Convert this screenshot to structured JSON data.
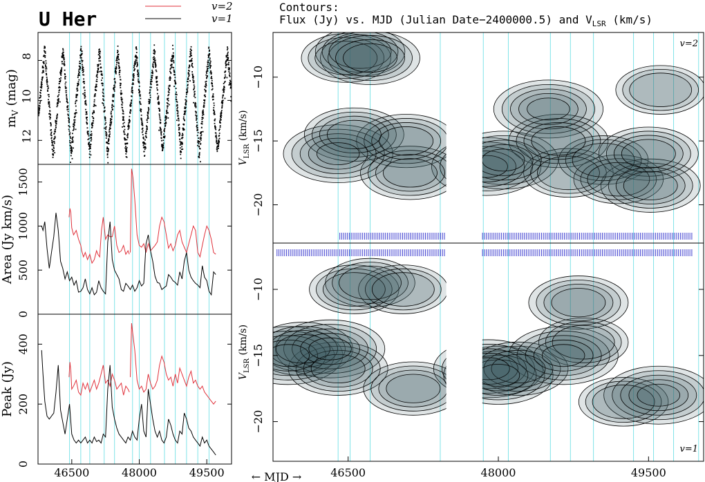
{
  "title": "U Her",
  "legend": {
    "v2": "v=2",
    "v1": "v=1",
    "colors": {
      "v2": "#e0303a",
      "v1": "#000000"
    }
  },
  "colors": {
    "grid": "#7fe3e8",
    "contour_fill": "#3f5f67",
    "obs_tick": "#4040d0"
  },
  "contours_title": {
    "line1": "Contours:",
    "line2_prefix": "Flux (Jy) vs. MJD (Julian  Date−2400000.5) and V",
    "line2_sub": "LSR",
    "line2_suffix": " (km/s)"
  },
  "xaxis_label": "← MJD →",
  "chart_data": [
    {
      "type": "scatter",
      "panel": "visual magnitude light curve",
      "ylabel": "m",
      "ylabel_sub": "V",
      "ylabel_suffix": " (mag)",
      "yticks": [
        "8",
        "10",
        "12"
      ],
      "ylim": [
        13.2,
        6.6
      ],
      "xlim": [
        45750,
        50050
      ],
      "pulsation": {
        "period_days": 406,
        "max_epoch_mjd": 45900,
        "mag_max": 7.5,
        "mag_min": 12.6
      },
      "xticks": [
        46500,
        48000,
        49500
      ]
    },
    {
      "type": "line",
      "panel": "integrated flux",
      "ylabel": "Area (Jy km/s)",
      "yticks": [
        "0",
        "500",
        "1000",
        "1500"
      ],
      "ylim": [
        0,
        1700
      ],
      "series": [
        {
          "name": "v=2",
          "x": [
            46390,
            46410,
            46440,
            46460,
            46480,
            46500,
            46540,
            46600,
            46650,
            46700,
            46720,
            46760,
            46800,
            46850,
            46900,
            46950,
            47000,
            47050,
            47080,
            47120,
            47160,
            47200,
            47250,
            47300,
            47350,
            47400,
            47450,
            47500,
            47550,
            47600,
            47650,
            47700,
            47750,
            47780,
            47800,
            47830,
            47860,
            47900,
            47950,
            48000,
            48050,
            48100,
            48150,
            48200,
            48250,
            48300,
            48350,
            48400,
            48450,
            48500,
            48550,
            48600,
            48650,
            48700,
            48750,
            48800,
            48850,
            48900,
            48950,
            49000,
            49050,
            49100,
            49150,
            49200,
            49250,
            49300,
            49350,
            49400,
            49450,
            49500,
            49550,
            49600,
            49650,
            49700
          ],
          "y": [
            null,
            null,
            1100,
            1200,
            1150,
            980,
            900,
            950,
            850,
            780,
            720,
            650,
            700,
            620,
            680,
            580,
            620,
            720,
            680,
            650,
            950,
            1100,
            850,
            900,
            880,
            880,
            1000,
            780,
            700,
            720,
            780,
            680,
            720,
            680,
            700,
            1650,
            1550,
            1300,
            900,
            780,
            760,
            800,
            700,
            800,
            720,
            750,
            780,
            820,
            1000,
            1100,
            1050,
            900,
            750,
            800,
            720,
            780,
            900,
            950,
            820,
            760,
            700,
            800,
            900,
            1000,
            950,
            700,
            650,
            780,
            900,
            1000,
            950,
            850,
            700,
            680
          ]
        },
        {
          "name": "v=1",
          "x": [
            45830,
            45860,
            45900,
            45950,
            46000,
            46050,
            46100,
            46150,
            46200,
            46250,
            46300,
            46350,
            46400,
            46450,
            46500,
            46550,
            46600,
            46650,
            46700,
            46750,
            46800,
            46850,
            46900,
            46950,
            47000,
            47050,
            47100,
            47150,
            47200,
            47250,
            47300,
            47350,
            47400,
            47450,
            47500,
            47550,
            47600,
            47650,
            47700,
            47750,
            47800,
            47850,
            47900,
            47950,
            48000,
            48050,
            48100,
            48150,
            48200,
            48250,
            48300,
            48350,
            48400,
            48450,
            48500,
            48550,
            48600,
            48650,
            48700,
            48750,
            48800,
            48850,
            48900,
            48950,
            49000,
            49050,
            49100,
            49150,
            49200,
            49250,
            49300,
            49350,
            49400,
            49450,
            49500,
            49550,
            49600,
            49650,
            49700
          ],
          "y": [
            1000,
            950,
            1050,
            750,
            520,
            700,
            880,
            1150,
            950,
            600,
            520,
            400,
            480,
            380,
            420,
            330,
            380,
            250,
            260,
            300,
            400,
            280,
            230,
            300,
            220,
            250,
            380,
            300,
            260,
            230,
            820,
            1050,
            620,
            500,
            450,
            400,
            280,
            260,
            350,
            320,
            280,
            330,
            260,
            300,
            380,
            320,
            350,
            800,
            900,
            720,
            600,
            430,
            360,
            350,
            280,
            300,
            320,
            450,
            420,
            380,
            360,
            330,
            480,
            400,
            600,
            700,
            500,
            420,
            380,
            350,
            330,
            300,
            550,
            420,
            380,
            260,
            220,
            480,
            450
          ]
        }
      ]
    },
    {
      "type": "line",
      "panel": "peak flux",
      "ylabel": "Peak (Jy)",
      "yticks": [
        "0",
        "200",
        "400"
      ],
      "ylim": [
        0,
        500
      ],
      "series": [
        {
          "name": "v=2",
          "x": [
            46440,
            46460,
            46480,
            46500,
            46540,
            46600,
            46650,
            46700,
            46750,
            46800,
            46850,
            46900,
            46950,
            47000,
            47050,
            47100,
            47150,
            47200,
            47250,
            47300,
            47350,
            47400,
            47450,
            47500,
            47550,
            47600,
            47650,
            47700,
            47750,
            47780,
            47800,
            47830,
            47860,
            47900,
            47950,
            48000,
            48050,
            48100,
            48150,
            48200,
            48250,
            48300,
            48350,
            48400,
            48450,
            48500,
            48550,
            48600,
            48650,
            48700,
            48750,
            48800,
            48850,
            48900,
            48950,
            49000,
            49050,
            49100,
            49150,
            49200,
            49250,
            49300,
            49350,
            49400,
            49450,
            49500,
            49550,
            49600,
            49650,
            49700
          ],
          "y": [
            290,
            340,
            310,
            250,
            260,
            280,
            240,
            230,
            270,
            250,
            270,
            240,
            260,
            280,
            250,
            270,
            300,
            330,
            270,
            280,
            260,
            300,
            280,
            250,
            260,
            270,
            230,
            260,
            250,
            240,
            290,
            470,
            430,
            380,
            280,
            250,
            260,
            240,
            250,
            300,
            270,
            250,
            260,
            280,
            330,
            360,
            340,
            300,
            280,
            290,
            260,
            300,
            270,
            320,
            300,
            280,
            260,
            290,
            310,
            270,
            280,
            260,
            250,
            260,
            240,
            230,
            220,
            210,
            200,
            210
          ]
        },
        {
          "name": "v=1",
          "x": [
            45830,
            45860,
            45900,
            45950,
            46000,
            46050,
            46100,
            46150,
            46200,
            46250,
            46300,
            46350,
            46400,
            46450,
            46500,
            46550,
            46600,
            46650,
            46700,
            46750,
            46800,
            46850,
            46900,
            46950,
            47000,
            47050,
            47100,
            47150,
            47200,
            47250,
            47300,
            47350,
            47400,
            47450,
            47500,
            47550,
            47600,
            47650,
            47700,
            47750,
            47800,
            47850,
            47900,
            47950,
            48000,
            48050,
            48100,
            48150,
            48200,
            48250,
            48300,
            48350,
            48400,
            48450,
            48500,
            48550,
            48600,
            48650,
            48700,
            48750,
            48800,
            48850,
            48900,
            48950,
            49000,
            49050,
            49100,
            49150,
            49200,
            49250,
            49300,
            49350,
            49400,
            49450,
            49500,
            49550,
            49600,
            49650,
            49700
          ],
          "y": [
            380,
            300,
            210,
            160,
            150,
            160,
            170,
            240,
            330,
            180,
            140,
            100,
            150,
            200,
            100,
            80,
            70,
            80,
            70,
            80,
            90,
            70,
            80,
            70,
            90,
            75,
            80,
            70,
            100,
            90,
            250,
            330,
            190,
            150,
            120,
            100,
            90,
            80,
            70,
            90,
            80,
            110,
            90,
            80,
            150,
            200,
            110,
            90,
            250,
            200,
            150,
            110,
            90,
            110,
            80,
            70,
            90,
            150,
            130,
            100,
            80,
            70,
            110,
            100,
            170,
            150,
            120,
            110,
            90,
            80,
            70,
            60,
            90,
            70,
            80,
            60,
            50,
            40,
            30
          ]
        }
      ]
    },
    {
      "type": "heatmap",
      "panel": "dynamic spectrum v=2",
      "ylabel": "V",
      "ylabel_sub": "LSR",
      "ylabel_suffix": " (km/s)",
      "label": "v=2",
      "yticks": [
        "−10",
        "−15",
        "−20"
      ],
      "ylim": [
        -23,
        -6.5
      ],
      "gap_mjd": [
        47480,
        47840
      ],
      "components": [
        {
          "x": 46400,
          "v": -16.0,
          "peak": 5
        },
        {
          "x": 46480,
          "v": -8.5,
          "peak": 3
        },
        {
          "x": 46560,
          "v": -14.5,
          "peak": 4
        },
        {
          "x": 46620,
          "v": -8.0,
          "peak": 3
        },
        {
          "x": 46720,
          "v": -8.5,
          "peak": 4
        },
        {
          "x": 47080,
          "v": -15.0,
          "peak": 4
        },
        {
          "x": 47120,
          "v": -17.5,
          "peak": 4
        },
        {
          "x": 47880,
          "v": -17.0,
          "peak": 5
        },
        {
          "x": 48050,
          "v": -16.5,
          "peak": 5
        },
        {
          "x": 48500,
          "v": -12.5,
          "peak": 5
        },
        {
          "x": 48600,
          "v": -15.0,
          "peak": 4
        },
        {
          "x": 48700,
          "v": -17.5,
          "peak": 3
        },
        {
          "x": 49050,
          "v": -16.5,
          "peak": 3
        },
        {
          "x": 49200,
          "v": -18.0,
          "peak": 3
        },
        {
          "x": 49500,
          "v": -16.0,
          "peak": 4
        },
        {
          "x": 49520,
          "v": -18.5,
          "peak": 4
        },
        {
          "x": 49620,
          "v": -11.0,
          "peak": 3
        }
      ]
    },
    {
      "type": "heatmap",
      "panel": "dynamic spectrum v=1",
      "ylabel": "V",
      "ylabel_sub": "LSR",
      "ylabel_suffix": " (km/s)",
      "label": "v=1",
      "yticks": [
        "−10",
        "−15",
        "−20"
      ],
      "ylim": [
        -23,
        -6.5
      ],
      "gap_mjd": [
        47480,
        47840
      ],
      "components": [
        {
          "x": 45900,
          "v": -15.0,
          "peak": 5
        },
        {
          "x": 46050,
          "v": -14.5,
          "peak": 4
        },
        {
          "x": 46320,
          "v": -14.5,
          "peak": 5
        },
        {
          "x": 46400,
          "v": -16.0,
          "peak": 4
        },
        {
          "x": 46560,
          "v": -10.0,
          "peak": 3
        },
        {
          "x": 46720,
          "v": -9.5,
          "peak": 3
        },
        {
          "x": 47050,
          "v": -10.0,
          "peak": 3
        },
        {
          "x": 47150,
          "v": -17.5,
          "peak": 4
        },
        {
          "x": 47900,
          "v": -16.0,
          "peak": 5
        },
        {
          "x": 48000,
          "v": -16.5,
          "peak": 5
        },
        {
          "x": 48200,
          "v": -16.0,
          "peak": 4
        },
        {
          "x": 48650,
          "v": -15.0,
          "peak": 5
        },
        {
          "x": 48800,
          "v": -11.0,
          "peak": 4
        },
        {
          "x": 48850,
          "v": -14.0,
          "peak": 3
        },
        {
          "x": 49250,
          "v": -18.5,
          "peak": 3
        },
        {
          "x": 49600,
          "v": -18.0,
          "peak": 5
        }
      ]
    }
  ]
}
